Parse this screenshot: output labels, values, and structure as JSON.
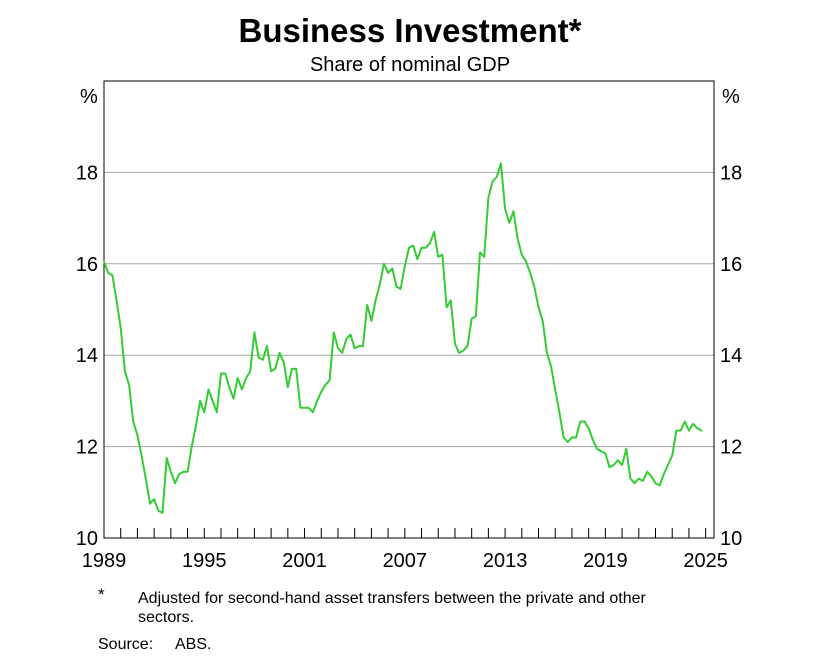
{
  "chart_data": {
    "type": "line",
    "title": "Business Investment*",
    "subtitle": "Share of nominal GDP",
    "y_unit_left": "%",
    "y_unit_right": "%",
    "ylim": [
      10,
      20
    ],
    "yticks": [
      10,
      12,
      14,
      16,
      18
    ],
    "xlim": [
      1989,
      2025.5
    ],
    "xtick_labels": [
      "1989",
      "1995",
      "2001",
      "2007",
      "2013",
      "2019",
      "2025"
    ],
    "grid": true,
    "line_color": "#33cc33",
    "series": [
      {
        "x": [
          1989.0,
          1989.25,
          1989.5,
          1989.75,
          1990.0,
          1990.25,
          1990.5,
          1990.75,
          1991.0,
          1991.25,
          1991.5,
          1991.75,
          1992.0,
          1992.25,
          1992.5,
          1992.75,
          1993.0,
          1993.25,
          1993.5,
          1993.75,
          1994.0,
          1994.25,
          1994.5,
          1994.75,
          1995.0,
          1995.25,
          1995.5,
          1995.75,
          1996.0,
          1996.25,
          1996.5,
          1996.75,
          1997.0,
          1997.25,
          1997.5,
          1997.75,
          1998.0,
          1998.25,
          1998.5,
          1998.75,
          1999.0,
          1999.25,
          1999.5,
          1999.75,
          2000.0,
          2000.25,
          2000.5,
          2000.75,
          2001.0,
          2001.25,
          2001.5,
          2001.75,
          2002.0,
          2002.25,
          2002.5,
          2002.75,
          2003.0,
          2003.25,
          2003.5,
          2003.75,
          2004.0,
          2004.25,
          2004.5,
          2004.75,
          2005.0,
          2005.25,
          2005.5,
          2005.75,
          2006.0,
          2006.25,
          2006.5,
          2006.75,
          2007.0,
          2007.25,
          2007.5,
          2007.75,
          2008.0,
          2008.25,
          2008.5,
          2008.75,
          2009.0,
          2009.25,
          2009.5,
          2009.75,
          2010.0,
          2010.25,
          2010.5,
          2010.75,
          2011.0,
          2011.25,
          2011.5,
          2011.75,
          2012.0,
          2012.25,
          2012.5,
          2012.75,
          2013.0,
          2013.25,
          2013.5,
          2013.75,
          2014.0,
          2014.25,
          2014.5,
          2014.75,
          2015.0,
          2015.25,
          2015.5,
          2015.75,
          2016.0,
          2016.25,
          2016.5,
          2016.75,
          2017.0,
          2017.25,
          2017.5,
          2017.75,
          2018.0,
          2018.25,
          2018.5,
          2018.75,
          2019.0,
          2019.25,
          2019.5,
          2019.75,
          2020.0,
          2020.25,
          2020.5,
          2020.75,
          2021.0,
          2021.25,
          2021.5,
          2021.75,
          2022.0,
          2022.25,
          2022.5,
          2022.75,
          2023.0,
          2023.25,
          2023.5,
          2023.75,
          2024.0,
          2024.25,
          2024.5,
          2024.75
        ],
        "values": [
          16.05,
          15.8,
          15.75,
          15.2,
          14.6,
          13.65,
          13.35,
          12.55,
          12.25,
          11.8,
          11.3,
          10.75,
          10.85,
          10.6,
          10.55,
          11.75,
          11.45,
          11.2,
          11.4,
          11.45,
          11.45,
          12.0,
          12.45,
          13.0,
          12.75,
          13.25,
          13.0,
          12.75,
          13.6,
          13.6,
          13.3,
          13.05,
          13.5,
          13.25,
          13.5,
          13.65,
          14.5,
          13.95,
          13.9,
          14.2,
          13.65,
          13.7,
          14.05,
          13.85,
          13.3,
          13.7,
          13.7,
          12.85,
          12.85,
          12.85,
          12.75,
          13.0,
          13.2,
          13.35,
          13.45,
          14.5,
          14.15,
          14.05,
          14.35,
          14.45,
          14.15,
          14.2,
          14.2,
          15.1,
          14.75,
          15.2,
          15.55,
          16.0,
          15.8,
          15.9,
          15.5,
          15.45,
          15.95,
          16.35,
          16.4,
          16.1,
          16.35,
          16.35,
          16.45,
          16.7,
          16.15,
          16.2,
          15.05,
          15.2,
          14.25,
          14.05,
          14.1,
          14.2,
          14.8,
          14.85,
          16.25,
          16.15,
          17.45,
          17.8,
          17.9,
          18.2,
          17.2,
          16.9,
          17.15,
          16.55,
          16.2,
          16.05,
          15.8,
          15.5,
          15.05,
          14.75,
          14.05,
          13.75,
          13.25,
          12.75,
          12.2,
          12.1,
          12.2,
          12.2,
          12.55,
          12.55,
          12.4,
          12.15,
          11.95,
          11.9,
          11.85,
          11.55,
          11.6,
          11.7,
          11.6,
          11.95,
          11.3,
          11.2,
          11.3,
          11.25,
          11.45,
          11.35,
          11.2,
          11.15,
          11.4,
          11.6,
          11.8,
          12.35,
          12.35,
          12.55,
          12.35,
          12.5,
          12.4,
          12.35
        ]
      }
    ],
    "footnote_marker": "*",
    "footnote_text": "Adjusted for second-hand asset transfers between the private and other sectors.",
    "source_label": "Source:",
    "source_value": "ABS."
  }
}
